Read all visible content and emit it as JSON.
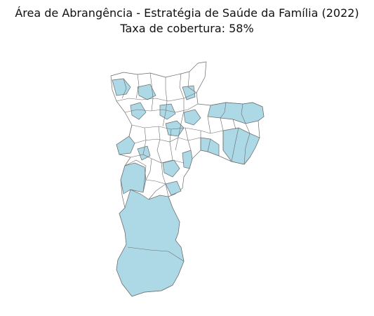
{
  "title": "Área de Abrangência - Estratégia de Saúde da Família (2022)",
  "subtitle": "Taxa de cobertura: 58%",
  "colors": {
    "covered": "#add8e6",
    "uncovered": "#ffffff",
    "boundary": "#6b6b6b"
  },
  "map": {
    "coverage_rate_percent": 58
  }
}
